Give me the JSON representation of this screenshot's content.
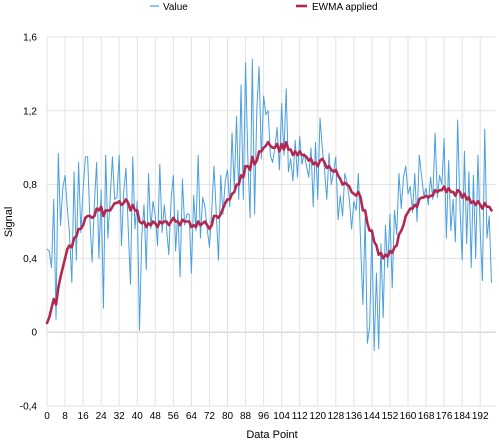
{
  "chart_data": {
    "type": "line",
    "title": "",
    "xlabel": "Data Point",
    "ylabel": "Signal",
    "xlim": [
      0,
      199
    ],
    "ylim": [
      -0.4,
      1.6
    ],
    "y_ticks": [
      -0.4,
      0,
      0.4,
      0.8,
      1.2,
      1.6
    ],
    "y_tick_labels": [
      "-0,4",
      "0",
      "0,4",
      "0,8",
      "1,2",
      "1,6"
    ],
    "x_ticks": [
      0,
      8,
      16,
      24,
      32,
      40,
      48,
      56,
      64,
      72,
      80,
      88,
      96,
      104,
      112,
      120,
      128,
      136,
      144,
      152,
      160,
      168,
      176,
      184,
      192
    ],
    "x_tick_labels": [
      "0",
      "8",
      "16",
      "24",
      "32",
      "40",
      "48",
      "56",
      "64",
      "72",
      "80",
      "88",
      "96",
      "104",
      "112",
      "120",
      "128",
      "136",
      "144",
      "152",
      "160",
      "168",
      "176",
      "184",
      "192"
    ],
    "grid": true,
    "legend": "top-center",
    "series": [
      {
        "name": "Value",
        "color": "#4a9fe0",
        "values": [
          0.45,
          0.44,
          0.35,
          0.72,
          0.07,
          0.97,
          0.58,
          0.78,
          0.85,
          0.67,
          0.53,
          0.27,
          0.87,
          0.39,
          0.92,
          0.54,
          0.77,
          0.95,
          0.95,
          0.61,
          0.38,
          0.7,
          0.92,
          0.4,
          0.77,
          0.13,
          0.96,
          0.51,
          0.73,
          0.95,
          0.72,
          0.73,
          0.96,
          0.47,
          0.76,
          0.89,
          0.56,
          0.26,
          0.95,
          0.56,
          0.71,
          0.01,
          0.52,
          0.69,
          0.34,
          0.86,
          0.56,
          0.71,
          0.63,
          0.47,
          0.91,
          0.54,
          0.69,
          0.56,
          0.42,
          0.72,
          0.85,
          0.44,
          0.66,
          0.3,
          0.83,
          0.58,
          0.64,
          0.64,
          0.32,
          0.74,
          0.55,
          0.96,
          0.51,
          0.73,
          0.68,
          0.56,
          0.46,
          0.66,
          0.9,
          0.65,
          0.39,
          0.85,
          0.64,
          0.82,
          0.88,
          0.68,
          1.08,
          0.78,
          1.17,
          0.72,
          1.34,
          0.72,
          1.46,
          0.95,
          0.62,
          1.48,
          0.64,
          1.21,
          1.44,
          0.94,
          1.28,
          1.18,
          1.2,
          0.96,
          0.92,
          1.0,
          1.11,
          0.88,
          1.24,
          0.96,
          1.32,
          0.87,
          0.94,
          0.82,
          1.04,
          0.84,
          1.06,
          0.91,
          0.97,
          0.9,
          0.84,
          1.0,
          0.68,
          1.03,
          0.72,
          1.16,
          1.0,
          0.88,
          0.72,
          0.97,
          0.8,
          0.87,
          0.95,
          0.61,
          0.74,
          0.63,
          0.86,
          0.81,
          0.72,
          0.56,
          0.71,
          0.66,
          0.86,
          0.48,
          0.15,
          0.62,
          -0.06,
          0.03,
          0.56,
          -0.1,
          0.32,
          -0.09,
          0.48,
          0.08,
          0.58,
          0.35,
          0.64,
          0.24,
          0.66,
          0.53,
          0.86,
          0.67,
          0.84,
          0.9,
          0.75,
          0.79,
          0.65,
          0.86,
          0.6,
          0.96,
          0.85,
          0.74,
          0.78,
          0.69,
          0.84,
          0.72,
          1.08,
          0.73,
          0.85,
          0.8,
          1.05,
          0.51,
          0.93,
          0.55,
          0.72,
          0.49,
          1.15,
          0.69,
          0.39,
          0.98,
          0.48,
          0.87,
          0.35,
          0.85,
          0.4,
          0.96,
          0.55,
          0.28,
          1.1,
          0.51,
          0.63,
          0.27
        ]
      },
      {
        "name": "EWMA applied",
        "color": "#b2284f",
        "values": [
          0.05,
          0.08,
          0.13,
          0.18,
          0.15,
          0.24,
          0.3,
          0.35,
          0.4,
          0.45,
          0.47,
          0.46,
          0.51,
          0.52,
          0.56,
          0.56,
          0.58,
          0.62,
          0.63,
          0.63,
          0.62,
          0.63,
          0.67,
          0.66,
          0.68,
          0.63,
          0.66,
          0.66,
          0.66,
          0.68,
          0.7,
          0.7,
          0.71,
          0.69,
          0.7,
          0.72,
          0.7,
          0.66,
          0.69,
          0.66,
          0.66,
          0.6,
          0.59,
          0.6,
          0.57,
          0.59,
          0.58,
          0.6,
          0.59,
          0.57,
          0.6,
          0.59,
          0.6,
          0.6,
          0.58,
          0.6,
          0.62,
          0.6,
          0.6,
          0.58,
          0.61,
          0.6,
          0.6,
          0.6,
          0.57,
          0.58,
          0.57,
          0.6,
          0.58,
          0.59,
          0.6,
          0.58,
          0.56,
          0.58,
          0.63,
          0.63,
          0.62,
          0.64,
          0.67,
          0.7,
          0.72,
          0.72,
          0.75,
          0.76,
          0.8,
          0.8,
          0.85,
          0.84,
          0.9,
          0.9,
          0.88,
          0.95,
          0.91,
          0.93,
          0.98,
          0.98,
          1.0,
          1.01,
          1.03,
          1.01,
          1.0,
          1.0,
          1.02,
          0.98,
          1.02,
          0.99,
          1.03,
          0.99,
          0.99,
          0.96,
          0.98,
          0.96,
          0.98,
          0.96,
          0.96,
          0.95,
          0.93,
          0.94,
          0.91,
          0.92,
          0.9,
          0.93,
          0.94,
          0.92,
          0.89,
          0.9,
          0.88,
          0.87,
          0.88,
          0.85,
          0.83,
          0.8,
          0.81,
          0.8,
          0.79,
          0.76,
          0.75,
          0.74,
          0.76,
          0.73,
          0.66,
          0.66,
          0.59,
          0.55,
          0.55,
          0.49,
          0.47,
          0.42,
          0.43,
          0.4,
          0.42,
          0.41,
          0.44,
          0.43,
          0.46,
          0.47,
          0.53,
          0.55,
          0.58,
          0.63,
          0.65,
          0.67,
          0.67,
          0.69,
          0.68,
          0.72,
          0.73,
          0.73,
          0.74,
          0.73,
          0.74,
          0.74,
          0.77,
          0.76,
          0.77,
          0.77,
          0.79,
          0.76,
          0.78,
          0.76,
          0.76,
          0.74,
          0.77,
          0.76,
          0.73,
          0.75,
          0.72,
          0.73,
          0.7,
          0.71,
          0.69,
          0.71,
          0.69,
          0.67,
          0.7,
          0.68,
          0.68,
          0.66
        ]
      }
    ]
  }
}
